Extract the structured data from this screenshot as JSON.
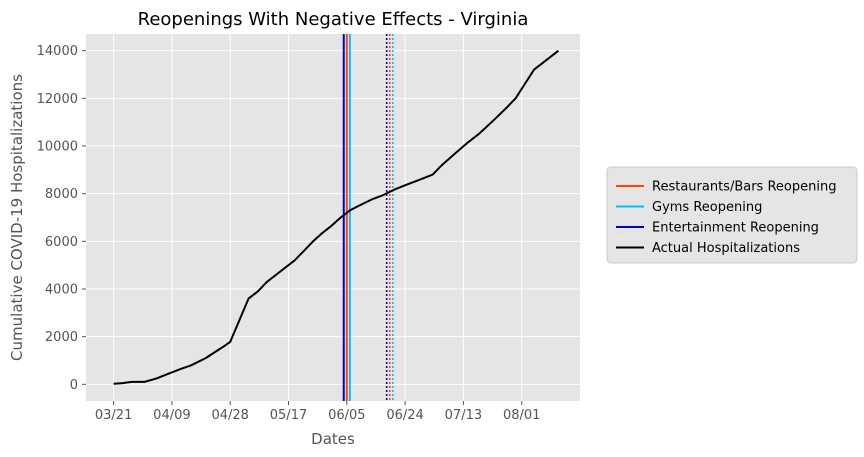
{
  "chart_data": {
    "type": "line",
    "title": "Reopenings With Negative Effects - Virginia",
    "xlabel": "Dates",
    "ylabel": "Cumulative COVID-19 Hospitalizations",
    "x_tick_labels": [
      "03/21",
      "04/09",
      "04/28",
      "05/17",
      "06/05",
      "06/24",
      "07/13",
      "08/01"
    ],
    "x_tick_days": [
      0,
      19,
      38,
      57,
      76,
      95,
      114,
      133
    ],
    "x_range_days": [
      -9,
      152
    ],
    "y_ticks": [
      0,
      2000,
      4000,
      6000,
      8000,
      10000,
      12000,
      14000
    ],
    "ylim": [
      -700,
      14700
    ],
    "grid": true,
    "legend_position": "right",
    "colors": {
      "restaurants": "#ff4500",
      "gyms": "#00bfff",
      "entertainment": "#0000cd",
      "actual": "#000000"
    },
    "legend": [
      {
        "label": "Restaurants/Bars Reopening",
        "color_key": "restaurants"
      },
      {
        "label": "Gyms Reopening",
        "color_key": "gyms"
      },
      {
        "label": "Entertainment Reopening",
        "color_key": "entertainment"
      },
      {
        "label": "Actual Hospitalizations",
        "color_key": "actual"
      }
    ],
    "reopening_lines": [
      {
        "series": "Entertainment Reopening",
        "day": 75,
        "style": "solid",
        "color_key": "entertainment"
      },
      {
        "series": "Restaurants/Bars Reopening",
        "day": 76,
        "style": "solid",
        "color_key": "restaurants"
      },
      {
        "series": "Gyms Reopening",
        "day": 77,
        "style": "solid",
        "color_key": "gyms"
      },
      {
        "series": "Entertainment Reopening",
        "day": 89,
        "style": "dotted",
        "color_key": "entertainment"
      },
      {
        "series": "Restaurants/Bars Reopening",
        "day": 90,
        "style": "dotted",
        "color_key": "restaurants"
      },
      {
        "series": "Gyms Reopening",
        "day": 91,
        "style": "dotted",
        "color_key": "gyms"
      }
    ],
    "series": [
      {
        "name": "Actual Hospitalizations",
        "color_key": "actual",
        "points": [
          {
            "x": 0,
            "y": 20
          },
          {
            "x": 3,
            "y": 50
          },
          {
            "x": 6,
            "y": 100
          },
          {
            "x": 10,
            "y": 100
          },
          {
            "x": 14,
            "y": 250
          },
          {
            "x": 18,
            "y": 450
          },
          {
            "x": 22,
            "y": 650
          },
          {
            "x": 25,
            "y": 780
          },
          {
            "x": 30,
            "y": 1100
          },
          {
            "x": 33,
            "y": 1350
          },
          {
            "x": 36,
            "y": 1600
          },
          {
            "x": 38,
            "y": 1780
          },
          {
            "x": 44,
            "y": 3600
          },
          {
            "x": 47,
            "y": 3900
          },
          {
            "x": 50,
            "y": 4300
          },
          {
            "x": 53,
            "y": 4600
          },
          {
            "x": 56,
            "y": 4900
          },
          {
            "x": 59,
            "y": 5200
          },
          {
            "x": 62,
            "y": 5600
          },
          {
            "x": 65,
            "y": 6000
          },
          {
            "x": 68,
            "y": 6350
          },
          {
            "x": 71,
            "y": 6650
          },
          {
            "x": 74,
            "y": 7000
          },
          {
            "x": 77,
            "y": 7300
          },
          {
            "x": 80,
            "y": 7500
          },
          {
            "x": 84,
            "y": 7750
          },
          {
            "x": 88,
            "y": 7950
          },
          {
            "x": 92,
            "y": 8200
          },
          {
            "x": 96,
            "y": 8400
          },
          {
            "x": 100,
            "y": 8600
          },
          {
            "x": 104,
            "y": 8800
          },
          {
            "x": 107,
            "y": 9200
          },
          {
            "x": 111,
            "y": 9650
          },
          {
            "x": 115,
            "y": 10100
          },
          {
            "x": 119,
            "y": 10500
          },
          {
            "x": 124,
            "y": 11100
          },
          {
            "x": 128,
            "y": 11600
          },
          {
            "x": 131,
            "y": 12000
          },
          {
            "x": 134,
            "y": 12600
          },
          {
            "x": 137,
            "y": 13200
          },
          {
            "x": 141,
            "y": 13600
          },
          {
            "x": 145,
            "y": 14000
          }
        ]
      }
    ]
  }
}
